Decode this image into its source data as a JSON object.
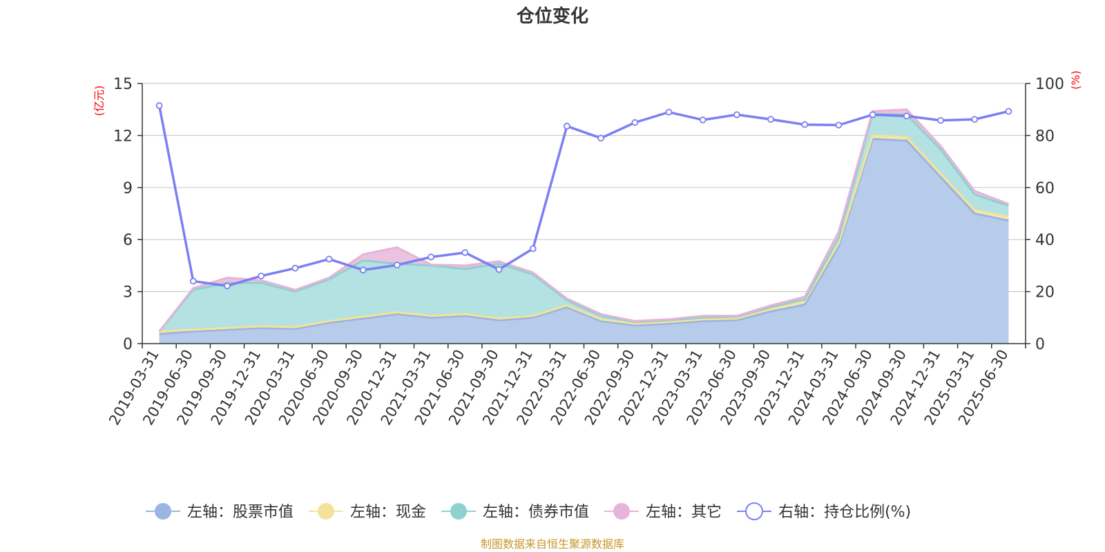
{
  "chart_data": {
    "type": "area",
    "title": "仓位变化",
    "left_axis_unit": "(亿元)",
    "right_axis_unit": "(%)",
    "left_ylim": [
      0,
      15
    ],
    "left_ticks": [
      "0",
      "3",
      "6",
      "9",
      "12",
      "15"
    ],
    "right_ylim": [
      0,
      100
    ],
    "right_ticks": [
      "0",
      "20",
      "40",
      "60",
      "80",
      "100"
    ],
    "grid": true,
    "legend_position": "bottom",
    "categories": [
      "2019-03-31",
      "2019-06-30",
      "2019-09-30",
      "2019-12-31",
      "2020-03-31",
      "2020-06-30",
      "2020-09-30",
      "2020-12-31",
      "2021-03-31",
      "2021-06-30",
      "2021-09-30",
      "2021-12-31",
      "2022-03-31",
      "2022-06-30",
      "2022-09-30",
      "2022-12-31",
      "2023-03-31",
      "2023-06-30",
      "2023-09-30",
      "2023-12-31",
      "2024-03-31",
      "2024-06-30",
      "2024-09-30",
      "2024-12-31",
      "2025-03-31",
      "2025-06-30"
    ],
    "series": [
      {
        "name": "左轴：股票市值",
        "axis": "left",
        "stack": true,
        "color": "#9bb5e0",
        "fill": "#b7cbea",
        "values": [
          0.55,
          0.7,
          0.8,
          0.9,
          0.85,
          1.2,
          1.45,
          1.7,
          1.5,
          1.6,
          1.35,
          1.5,
          2.1,
          1.3,
          1.05,
          1.15,
          1.3,
          1.35,
          1.85,
          2.25,
          5.6,
          11.8,
          11.7,
          9.6,
          7.5,
          7.1
        ]
      },
      {
        "name": "左轴：现金",
        "axis": "left",
        "stack": true,
        "color": "#f5e29a",
        "fill": "#f7e9b0",
        "values": [
          0.15,
          0.1,
          0.1,
          0.1,
          0.1,
          0.1,
          0.1,
          0.1,
          0.1,
          0.1,
          0.1,
          0.1,
          0.1,
          0.1,
          0.1,
          0.1,
          0.1,
          0.1,
          0.15,
          0.2,
          0.2,
          0.2,
          0.2,
          0.2,
          0.2,
          0.2
        ]
      },
      {
        "name": "左轴：债券市值",
        "axis": "left",
        "stack": true,
        "color": "#8fd0d0",
        "fill": "#b4e1e1",
        "values": [
          0,
          2.3,
          2.6,
          2.5,
          2.05,
          2.4,
          3.25,
          2.8,
          2.9,
          2.6,
          3.15,
          2.4,
          0.3,
          0.2,
          0.1,
          0.1,
          0.1,
          0.1,
          0.1,
          0.1,
          0.3,
          1.25,
          1.3,
          1.4,
          0.9,
          0.65
        ]
      },
      {
        "name": "左轴：其它",
        "axis": "left",
        "stack": true,
        "color": "#e6b3d9",
        "fill": "#ebc3de",
        "values": [
          0,
          0.1,
          0.3,
          0.15,
          0.1,
          0.1,
          0.35,
          0.95,
          0.05,
          0.2,
          0.15,
          0.1,
          0.1,
          0.1,
          0.05,
          0.05,
          0.1,
          0.05,
          0.1,
          0.15,
          0.35,
          0.15,
          0.3,
          0.2,
          0.2,
          0.1
        ]
      },
      {
        "name": "右轴：持仓比例(%)",
        "axis": "right",
        "color": "#7b7ff2",
        "values": [
          91.5,
          24,
          22.2,
          26,
          29,
          32.5,
          28.3,
          30.2,
          33.3,
          35,
          28.5,
          36.5,
          83.6,
          79,
          85,
          89,
          86,
          88,
          86.2,
          84.2,
          84,
          88,
          87.5,
          85.8,
          86.2,
          89.3
        ]
      }
    ]
  },
  "source_text": "制图数据来自恒生聚源数据库"
}
